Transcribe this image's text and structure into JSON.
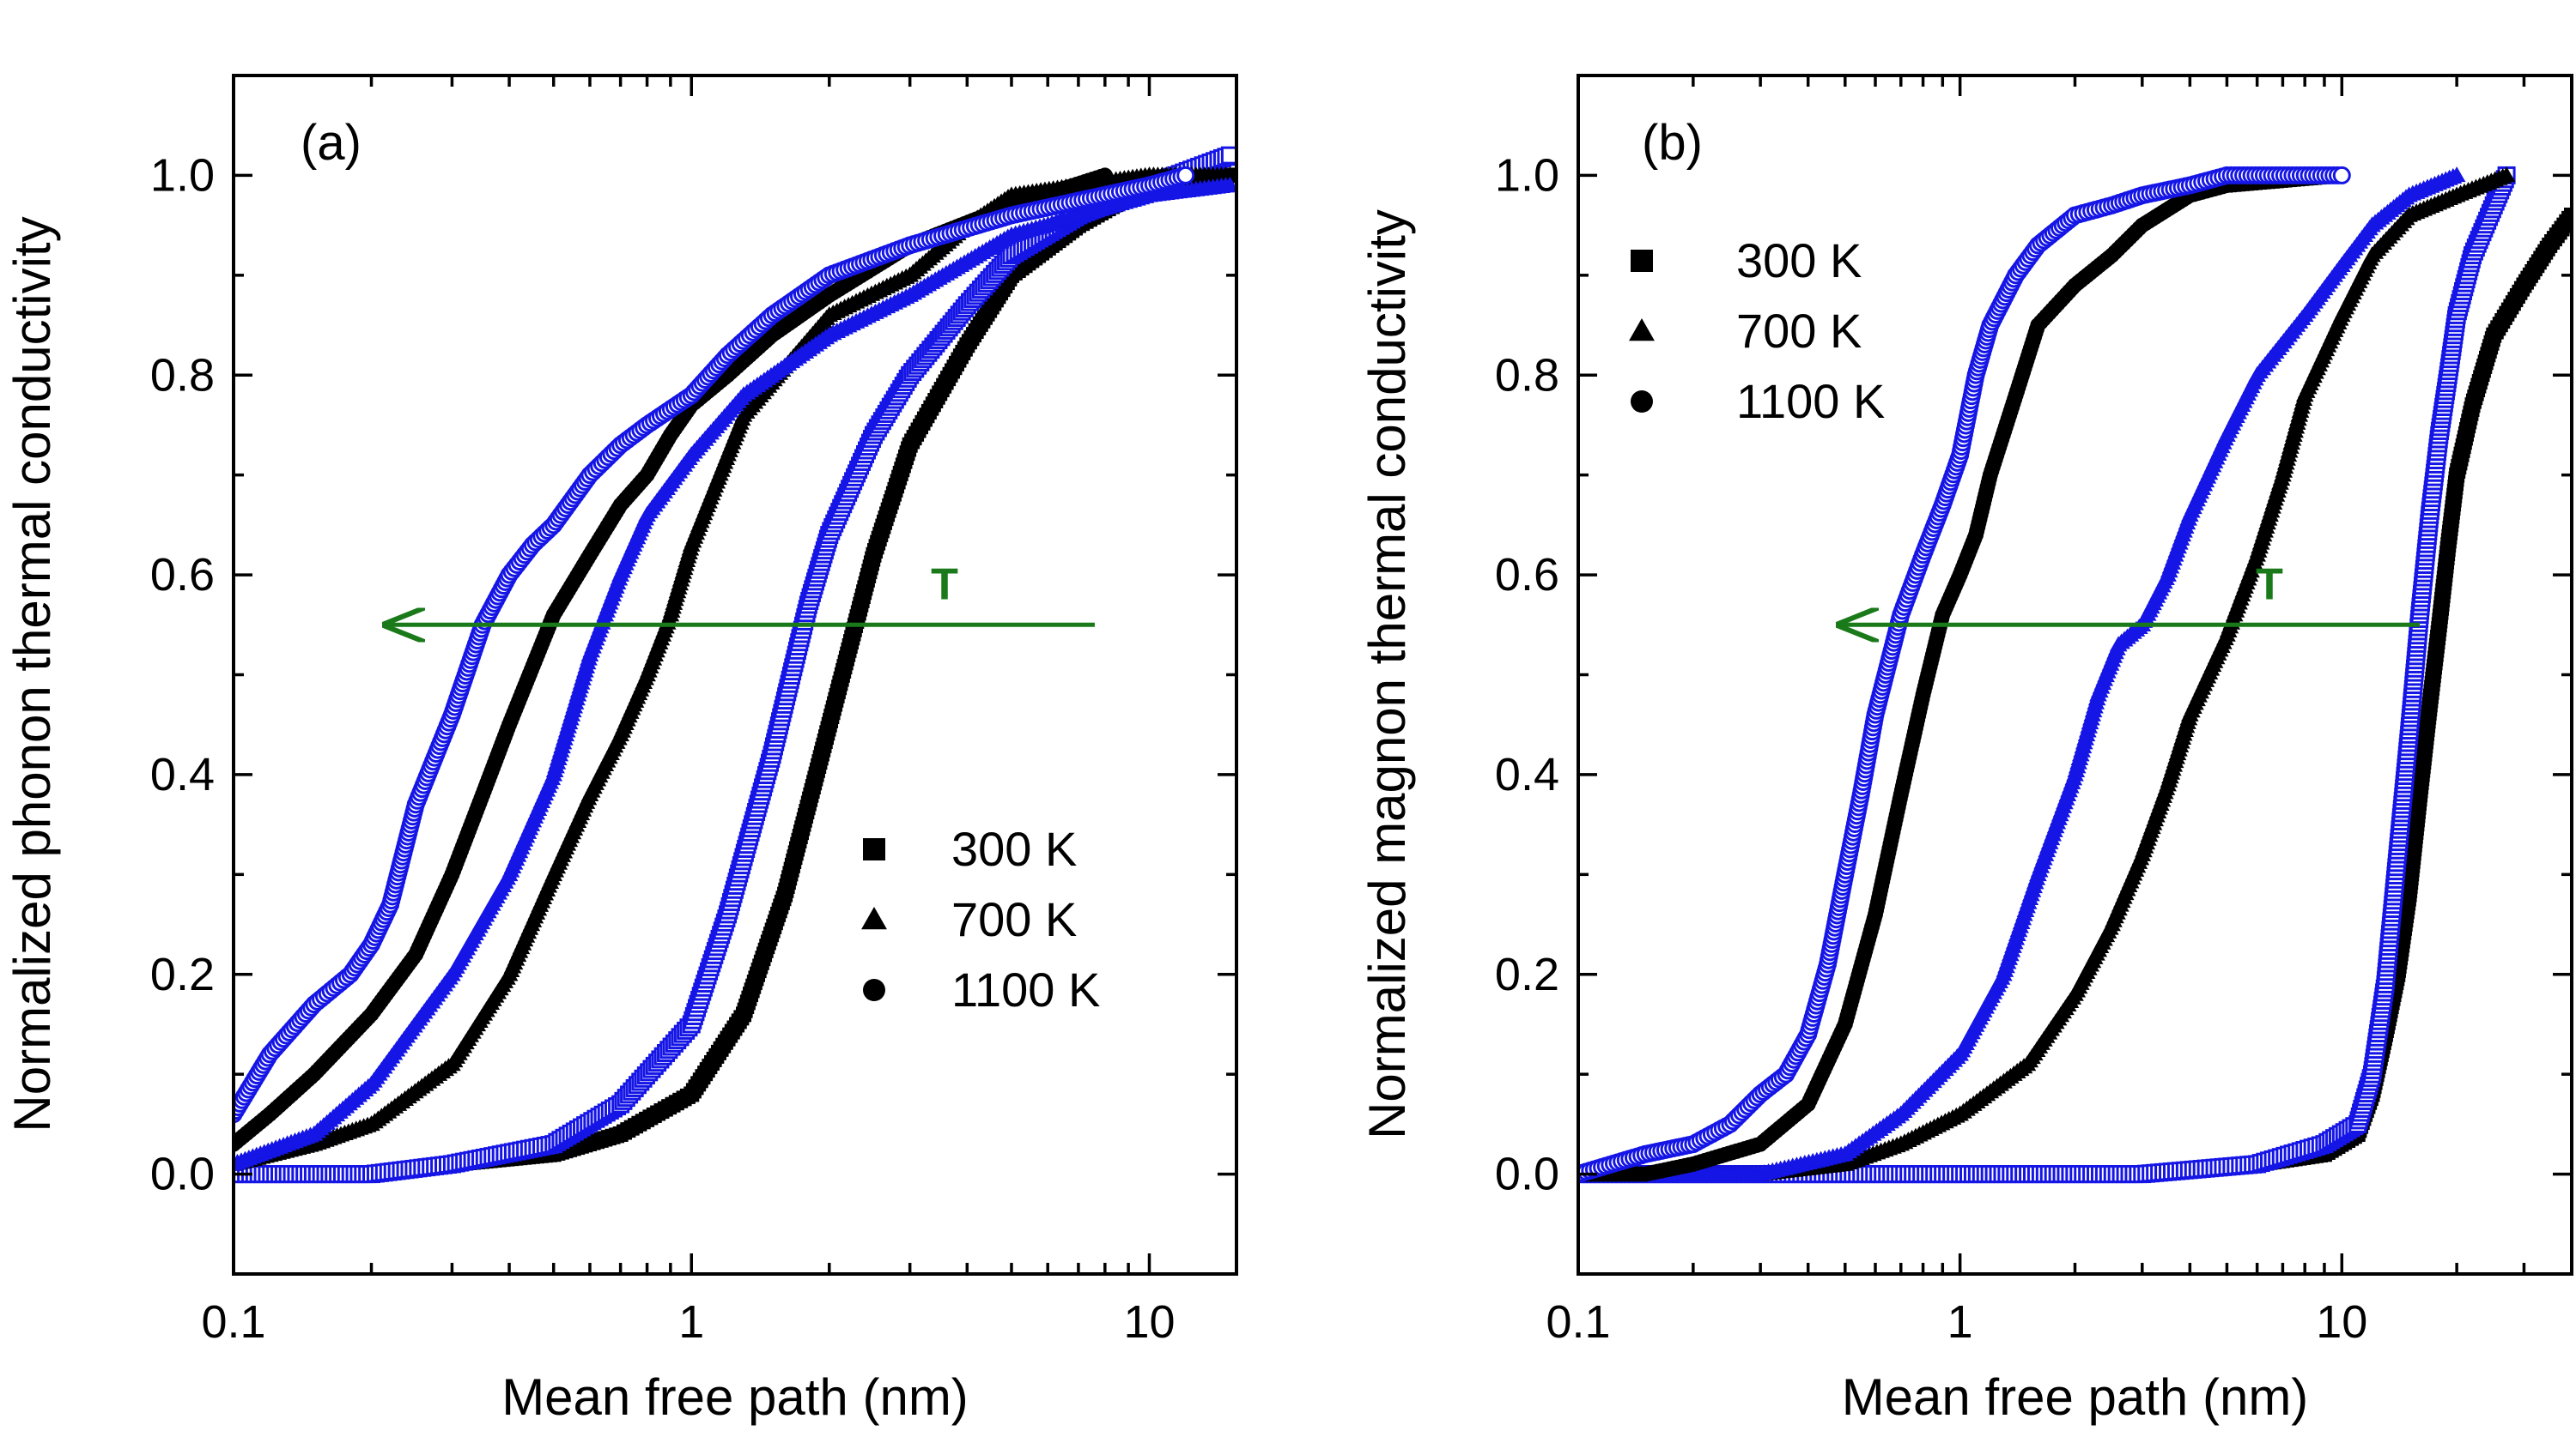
{
  "colors": {
    "black": "#000000",
    "blue": "#1515e6",
    "green": "#1a7a1a"
  },
  "chart_data": [
    {
      "id": "a",
      "type": "line",
      "panel_label": "(a)",
      "xlabel": "Mean free path (nm)",
      "ylabel": "Normalized phonon thermal conductivity",
      "xscale": "log",
      "xlim": [
        0.1,
        15.5
      ],
      "ylim": [
        -0.1,
        1.1
      ],
      "xticks": [
        {
          "v": 0.1,
          "label": "0.1"
        },
        {
          "v": 1,
          "label": "1"
        },
        {
          "v": 10,
          "label": "10"
        }
      ],
      "yticks": [
        {
          "v": 0.0,
          "label": "0.0"
        },
        {
          "v": 0.2,
          "label": "0.2"
        },
        {
          "v": 0.4,
          "label": "0.4"
        },
        {
          "v": 0.6,
          "label": "0.6"
        },
        {
          "v": 0.8,
          "label": "0.8"
        },
        {
          "v": 1.0,
          "label": "1.0"
        }
      ],
      "legend": {
        "placement": "lower-right",
        "entries": [
          {
            "marker": "square",
            "label": "300 K"
          },
          {
            "marker": "triangle",
            "label": "700 K"
          },
          {
            "marker": "circle",
            "label": "1100 K"
          }
        ]
      },
      "annotation": {
        "text": "T",
        "arrow_from": [
          7.6,
          0.55
        ],
        "arrow_to": [
          0.21,
          0.55
        ]
      },
      "series": [
        {
          "name": "300 K black",
          "marker": "square",
          "filled": true,
          "color": "black",
          "x": [
            0.1,
            0.2,
            0.3,
            0.5,
            0.7,
            1.0,
            1.3,
            1.6,
            2.0,
            2.5,
            3.0,
            4.0,
            5.0,
            7.0,
            10.0,
            15.0
          ],
          "y": [
            0.0,
            0.0,
            0.01,
            0.02,
            0.04,
            0.08,
            0.16,
            0.28,
            0.45,
            0.62,
            0.73,
            0.83,
            0.9,
            0.95,
            0.99,
            1.0
          ]
        },
        {
          "name": "300 K blue",
          "marker": "square",
          "filled": false,
          "color": "blue",
          "x": [
            0.1,
            0.2,
            0.3,
            0.5,
            0.7,
            1.0,
            1.2,
            1.5,
            1.8,
            2.0,
            2.5,
            3.0,
            4.0,
            5.0,
            7.0,
            10.0,
            15.0
          ],
          "y": [
            0.0,
            0.0,
            0.01,
            0.03,
            0.07,
            0.15,
            0.26,
            0.42,
            0.57,
            0.64,
            0.74,
            0.8,
            0.87,
            0.92,
            0.96,
            0.99,
            1.02
          ]
        },
        {
          "name": "700 K black",
          "marker": "triangle",
          "filled": true,
          "color": "black",
          "x": [
            0.1,
            0.15,
            0.2,
            0.3,
            0.4,
            0.5,
            0.6,
            0.7,
            0.8,
            0.9,
            1.0,
            1.3,
            2.0,
            3.0,
            4.0,
            5.0,
            7.0,
            10.0,
            15.0
          ],
          "y": [
            0.01,
            0.03,
            0.05,
            0.11,
            0.2,
            0.3,
            0.38,
            0.44,
            0.5,
            0.56,
            0.63,
            0.76,
            0.86,
            0.9,
            0.95,
            0.98,
            0.99,
            1.0,
            1.0
          ]
        },
        {
          "name": "700 K blue",
          "marker": "triangle",
          "filled": true,
          "color": "blue",
          "x": [
            0.1,
            0.15,
            0.2,
            0.3,
            0.4,
            0.5,
            0.6,
            0.7,
            0.8,
            1.0,
            1.3,
            2.0,
            3.0,
            5.0,
            10.0,
            15.0
          ],
          "y": [
            0.01,
            0.04,
            0.09,
            0.2,
            0.3,
            0.4,
            0.52,
            0.6,
            0.66,
            0.72,
            0.78,
            0.84,
            0.88,
            0.94,
            0.98,
            0.99
          ]
        },
        {
          "name": "1100 K black",
          "marker": "circle",
          "filled": true,
          "color": "black",
          "x": [
            0.1,
            0.12,
            0.15,
            0.2,
            0.25,
            0.3,
            0.35,
            0.4,
            0.5,
            0.6,
            0.7,
            0.8,
            0.9,
            1.0,
            1.2,
            1.5,
            2.0,
            3.0,
            5.0,
            8.0
          ],
          "y": [
            0.03,
            0.06,
            0.1,
            0.16,
            0.22,
            0.3,
            0.38,
            0.45,
            0.56,
            0.62,
            0.67,
            0.7,
            0.74,
            0.77,
            0.8,
            0.84,
            0.88,
            0.93,
            0.97,
            1.0
          ]
        },
        {
          "name": "1100 K blue",
          "marker": "circle",
          "filled": false,
          "color": "blue",
          "x": [
            0.1,
            0.12,
            0.15,
            0.18,
            0.2,
            0.22,
            0.25,
            0.3,
            0.35,
            0.4,
            0.45,
            0.5,
            0.6,
            0.7,
            0.8,
            1.0,
            1.2,
            1.5,
            2.0,
            3.0,
            5.0,
            10.0,
            12.0
          ],
          "y": [
            0.06,
            0.12,
            0.17,
            0.2,
            0.23,
            0.27,
            0.37,
            0.46,
            0.55,
            0.6,
            0.63,
            0.65,
            0.7,
            0.73,
            0.75,
            0.78,
            0.82,
            0.86,
            0.9,
            0.93,
            0.96,
            0.99,
            1.0
          ]
        }
      ]
    },
    {
      "id": "b",
      "type": "line",
      "panel_label": "(b)",
      "xlabel": "Mean free path (nm)",
      "ylabel": "Normalized magnon thermal conductivity",
      "xscale": "log",
      "xlim": [
        0.1,
        40
      ],
      "ylim": [
        -0.1,
        1.1
      ],
      "xticks": [
        {
          "v": 0.1,
          "label": "0.1"
        },
        {
          "v": 1,
          "label": "1"
        },
        {
          "v": 10,
          "label": "10"
        }
      ],
      "yticks": [
        {
          "v": 0.0,
          "label": "0.0"
        },
        {
          "v": 0.2,
          "label": "0.2"
        },
        {
          "v": 0.4,
          "label": "0.4"
        },
        {
          "v": 0.6,
          "label": "0.6"
        },
        {
          "v": 0.8,
          "label": "0.8"
        },
        {
          "v": 1.0,
          "label": "1.0"
        }
      ],
      "legend": {
        "placement": "top-left",
        "entries": [
          {
            "marker": "square",
            "label": "300 K"
          },
          {
            "marker": "triangle",
            "label": "700 K"
          },
          {
            "marker": "circle",
            "label": "1100 K"
          }
        ]
      },
      "annotation": {
        "text": "T",
        "arrow_from": [
          16,
          0.55
        ],
        "arrow_to": [
          0.47,
          0.55
        ]
      },
      "series": [
        {
          "name": "300 K black",
          "marker": "square",
          "filled": true,
          "color": "black",
          "x": [
            0.1,
            1.0,
            3.0,
            6.0,
            9.0,
            11.0,
            12.0,
            13.0,
            14.0,
            15.0,
            16.0,
            17.0,
            18.0,
            19.0,
            20.0,
            22.0,
            25.0,
            30.0,
            35.0,
            40.0
          ],
          "y": [
            0.0,
            0.0,
            0.0,
            0.01,
            0.02,
            0.04,
            0.08,
            0.14,
            0.2,
            0.28,
            0.38,
            0.47,
            0.55,
            0.63,
            0.7,
            0.77,
            0.84,
            0.89,
            0.93,
            0.96
          ]
        },
        {
          "name": "300 K blue",
          "marker": "square",
          "filled": false,
          "color": "blue",
          "x": [
            0.1,
            1.0,
            3.0,
            6.0,
            9.0,
            11.0,
            12.0,
            13.0,
            14.0,
            15.0,
            16.0,
            17.0,
            18.0,
            19.0,
            20.0,
            22.0,
            25.0,
            27.0
          ],
          "y": [
            0.0,
            0.0,
            0.0,
            0.01,
            0.03,
            0.05,
            0.1,
            0.19,
            0.32,
            0.44,
            0.56,
            0.66,
            0.74,
            0.8,
            0.86,
            0.92,
            0.97,
            1.0
          ]
        },
        {
          "name": "700 K black",
          "marker": "triangle",
          "filled": true,
          "color": "black",
          "x": [
            0.1,
            0.3,
            0.5,
            0.7,
            1.0,
            1.5,
            2.0,
            2.5,
            3.0,
            3.5,
            4.0,
            5.0,
            6.0,
            7.0,
            8.0,
            10.0,
            12.0,
            15.0,
            20.0,
            27.0
          ],
          "y": [
            0.0,
            0.0,
            0.01,
            0.03,
            0.06,
            0.11,
            0.18,
            0.25,
            0.32,
            0.39,
            0.46,
            0.54,
            0.62,
            0.7,
            0.78,
            0.86,
            0.92,
            0.96,
            0.98,
            1.0
          ]
        },
        {
          "name": "700 K blue",
          "marker": "triangle",
          "filled": true,
          "color": "blue",
          "x": [
            0.1,
            0.3,
            0.5,
            0.7,
            1.0,
            1.3,
            1.6,
            2.0,
            2.3,
            2.6,
            3.0,
            3.5,
            4.0,
            5.0,
            6.0,
            8.0,
            10.0,
            12.0,
            15.0,
            20.0
          ],
          "y": [
            0.0,
            0.0,
            0.02,
            0.06,
            0.12,
            0.2,
            0.3,
            0.4,
            0.48,
            0.53,
            0.55,
            0.6,
            0.66,
            0.74,
            0.8,
            0.86,
            0.91,
            0.95,
            0.98,
            1.0
          ]
        },
        {
          "name": "1100 K black",
          "marker": "circle",
          "filled": true,
          "color": "black",
          "x": [
            0.1,
            0.15,
            0.2,
            0.3,
            0.4,
            0.5,
            0.6,
            0.7,
            0.8,
            0.9,
            1.0,
            1.1,
            1.2,
            1.4,
            1.6,
            2.0,
            2.5,
            3.0,
            4.0,
            5.0,
            10.0
          ],
          "y": [
            0.0,
            0.0,
            0.01,
            0.03,
            0.07,
            0.15,
            0.26,
            0.38,
            0.48,
            0.56,
            0.6,
            0.64,
            0.7,
            0.78,
            0.85,
            0.89,
            0.92,
            0.95,
            0.98,
            0.99,
            1.0
          ]
        },
        {
          "name": "1100 K blue",
          "marker": "circle",
          "filled": false,
          "color": "blue",
          "x": [
            0.1,
            0.15,
            0.2,
            0.25,
            0.3,
            0.35,
            0.4,
            0.45,
            0.5,
            0.55,
            0.6,
            0.7,
            0.8,
            0.9,
            1.0,
            1.1,
            1.2,
            1.4,
            1.6,
            2.0,
            2.5,
            3.0,
            4.0,
            5.0,
            8.0,
            10.0
          ],
          "y": [
            0.0,
            0.02,
            0.03,
            0.05,
            0.08,
            0.1,
            0.14,
            0.21,
            0.3,
            0.38,
            0.46,
            0.56,
            0.62,
            0.67,
            0.72,
            0.8,
            0.85,
            0.9,
            0.93,
            0.96,
            0.97,
            0.98,
            0.99,
            1.0,
            1.0,
            1.0
          ]
        }
      ]
    }
  ]
}
